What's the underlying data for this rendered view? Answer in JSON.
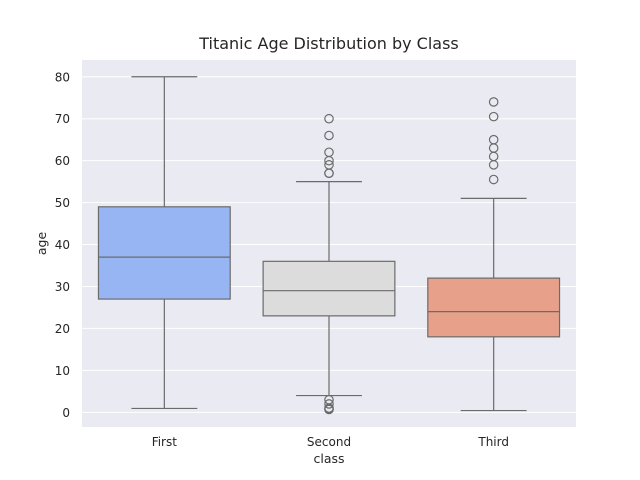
{
  "chart_data": {
    "type": "box",
    "title": "Titanic Age Distribution by Class",
    "xlabel": "class",
    "ylabel": "age",
    "categories": [
      "First",
      "Second",
      "Third"
    ],
    "ylim": [
      -3.5,
      84
    ],
    "yticks": [
      0,
      10,
      20,
      30,
      40,
      50,
      60,
      70,
      80
    ],
    "grid": true,
    "colors": {
      "background": "#eaeaf2",
      "grid": "#ffffff",
      "line": "#6b6b6b",
      "boxes": [
        "#98b5f3",
        "#dcdcdc",
        "#e7a18a"
      ]
    },
    "boxes": [
      {
        "category": "First",
        "whisker_low": 0.92,
        "q1": 27,
        "median": 37,
        "q3": 49,
        "whisker_high": 80,
        "outliers": []
      },
      {
        "category": "Second",
        "whisker_low": 4,
        "q1": 23,
        "median": 29,
        "q3": 36,
        "whisker_high": 55,
        "outliers": [
          70,
          66,
          62,
          60,
          59,
          57,
          57,
          3,
          2,
          1,
          0.83,
          0.67
        ]
      },
      {
        "category": "Third",
        "whisker_low": 0.42,
        "q1": 18,
        "median": 24,
        "q3": 32,
        "whisker_high": 51,
        "outliers": [
          74,
          70.5,
          65,
          63,
          61,
          59,
          55.5
        ]
      }
    ]
  }
}
